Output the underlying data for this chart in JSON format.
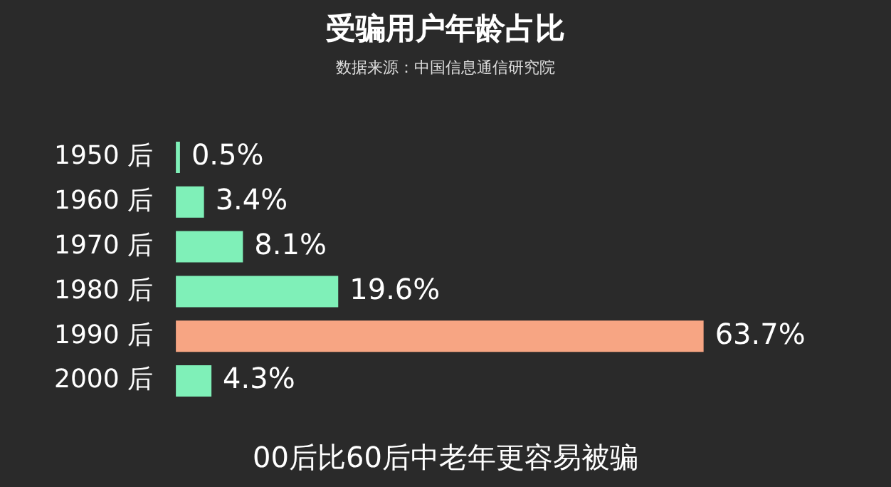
{
  "chart_data": {
    "type": "bar",
    "orientation": "horizontal",
    "title": "受骗用户年龄占比",
    "subtitle": "数据来源：中国信息通信研究院",
    "categories": [
      "1950 后",
      "1960 后",
      "1970 后",
      "1980 后",
      "1990 后",
      "2000 后"
    ],
    "values": [
      0.5,
      3.4,
      8.1,
      19.6,
      63.7,
      4.3
    ],
    "colors": [
      "#7ff0b8",
      "#7ff0b8",
      "#7ff0b8",
      "#7ff0b8",
      "#f7a583",
      "#7ff0b8"
    ],
    "value_labels": [
      "0.5%",
      "3.4%",
      "8.1%",
      "19.6%",
      "63.7%",
      "4.3%"
    ],
    "annotations": [
      "00后比60后中老年更容易被骗"
    ]
  }
}
